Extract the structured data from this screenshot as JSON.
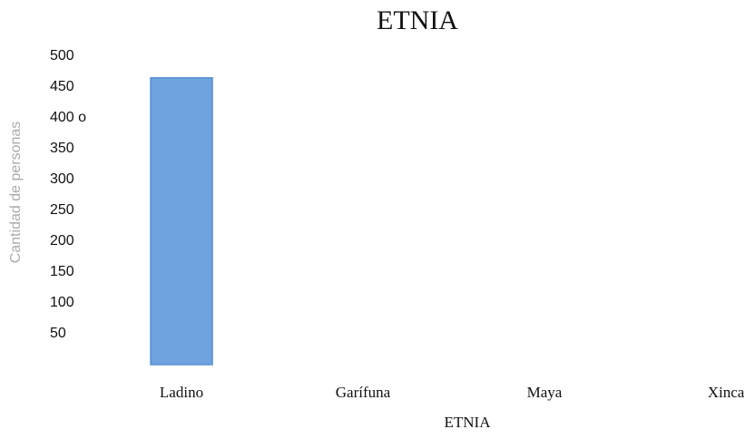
{
  "chart_data": {
    "type": "bar",
    "title": "ETNIA",
    "x_label": "ETNIA",
    "y_label": "Cantidad de personas",
    "categories": [
      "Ladino",
      "Garífuna",
      "Maya",
      "Xinca"
    ],
    "values": [
      465,
      0,
      0,
      0
    ],
    "color": "#6fa3e0",
    "ylim": [
      0,
      500
    ],
    "yticks": [
      50,
      100,
      150,
      200,
      250,
      300,
      350,
      {
        "value": 400,
        "label": "400 o"
      },
      450,
      500
    ],
    "grid": false
  }
}
